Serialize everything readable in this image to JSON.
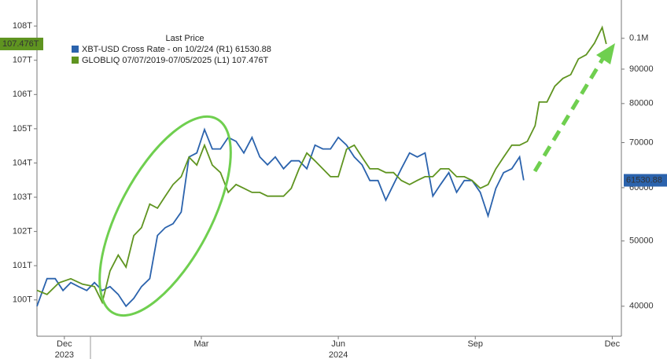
{
  "chart_data": {
    "type": "line",
    "legend_title": "Last Price",
    "xlim": [
      -0.6,
      12.2
    ],
    "xticks": [
      {
        "value": 0,
        "label": "Dec"
      },
      {
        "value": 3,
        "label": "Mar"
      },
      {
        "value": 6,
        "label": "Jun"
      },
      {
        "value": 9,
        "label": "Sep"
      },
      {
        "value": 12,
        "label": "Dec"
      }
    ],
    "x_sublabels": [
      {
        "value": 0,
        "label": "2023"
      },
      {
        "value": 6,
        "label": "2024"
      }
    ],
    "ylim": [
      98.94,
      108.76
    ],
    "yticks": [
      {
        "value": 100,
        "label": "100T"
      },
      {
        "value": 101,
        "label": "101T"
      },
      {
        "value": 102,
        "label": "102T"
      },
      {
        "value": 103,
        "label": "103T"
      },
      {
        "value": 104,
        "label": "104T"
      },
      {
        "value": 105,
        "label": "105T"
      },
      {
        "value": 106,
        "label": "106T"
      },
      {
        "value": 107,
        "label": "107T"
      },
      {
        "value": 108,
        "label": "108T"
      }
    ],
    "y2lim": [
      36100,
      114000
    ],
    "y2log": true,
    "y2ticks": [
      40000,
      50000,
      60000,
      70000,
      80000,
      90000,
      {
        "value": 100000,
        "label": "0.1M"
      }
    ],
    "series": [
      {
        "name": "XBT-USD Cross Rate - on 10/2/24 (R1) 61530.88",
        "color": "#2b63ad",
        "axis": "y2",
        "last_label": "61530.88",
        "x": [
          -0.6,
          -0.38,
          -0.2,
          -0.03,
          0.14,
          0.31,
          0.49,
          0.66,
          0.83,
          1.0,
          1.18,
          1.35,
          1.52,
          1.69,
          1.87,
          2.04,
          2.21,
          2.38,
          2.56,
          2.73,
          2.9,
          3.07,
          3.24,
          3.42,
          3.59,
          3.76,
          3.93,
          4.11,
          4.28,
          4.45,
          4.62,
          4.8,
          4.97,
          5.14,
          5.31,
          5.49,
          5.66,
          5.83,
          6.0,
          6.18,
          6.35,
          6.52,
          6.69,
          6.87,
          7.04,
          7.21,
          7.38,
          7.56,
          7.73,
          7.9,
          8.07,
          8.24,
          8.42,
          8.59,
          8.76,
          8.93,
          9.11,
          9.28,
          9.45,
          9.62,
          9.8,
          9.97,
          10.06
        ],
        "values": [
          40000,
          43960,
          43960,
          42210,
          43370,
          42780,
          42210,
          43370,
          42210,
          42780,
          41650,
          40000,
          41090,
          42780,
          43960,
          50950,
          52330,
          53040,
          55200,
          66640,
          67570,
          73190,
          68490,
          68490,
          71260,
          70310,
          67570,
          71260,
          66640,
          64880,
          66640,
          64010,
          65770,
          65770,
          64010,
          69410,
          68490,
          68490,
          71260,
          69410,
          66640,
          64880,
          61480,
          61480,
          57490,
          60660,
          64010,
          67570,
          66640,
          67570,
          58300,
          60660,
          63160,
          59050,
          61480,
          61480,
          59050,
          54490,
          59850,
          63160,
          64010,
          66640,
          61530.88
        ]
      },
      {
        "name": "GLOBLIQ 07/07/2019-07/05/2025 (L1) 107.476T",
        "color": "#5f9420",
        "axis": "y",
        "last_label": "107.476T",
        "x": [
          -0.6,
          -0.38,
          -0.12,
          0.14,
          0.4,
          0.66,
          0.83,
          1.0,
          1.18,
          1.35,
          1.52,
          1.69,
          1.87,
          2.04,
          2.21,
          2.38,
          2.56,
          2.73,
          2.9,
          3.07,
          3.24,
          3.42,
          3.59,
          3.76,
          3.93,
          4.11,
          4.28,
          4.45,
          4.62,
          4.8,
          4.97,
          5.14,
          5.31,
          5.49,
          5.66,
          5.83,
          6.0,
          6.18,
          6.35,
          6.52,
          6.69,
          6.87,
          7.04,
          7.21,
          7.38,
          7.56,
          7.73,
          7.9,
          8.07,
          8.24,
          8.42,
          8.59,
          8.76,
          8.93,
          9.11,
          9.28,
          9.45,
          9.62,
          9.8,
          9.97,
          10.14,
          10.31,
          10.4,
          10.57,
          10.74,
          10.92,
          11.09,
          11.26,
          11.43,
          11.61,
          11.78,
          11.87
        ],
        "values": [
          100.28,
          100.16,
          100.5,
          100.62,
          100.46,
          100.39,
          99.93,
          100.85,
          101.31,
          100.96,
          101.88,
          102.11,
          102.8,
          102.68,
          103.03,
          103.37,
          103.6,
          104.17,
          103.94,
          104.52,
          103.94,
          103.72,
          103.14,
          103.37,
          103.26,
          103.14,
          103.14,
          103.03,
          103.03,
          103.03,
          103.26,
          103.83,
          104.29,
          104.06,
          103.83,
          103.6,
          103.6,
          104.4,
          104.52,
          104.17,
          103.83,
          103.83,
          103.72,
          103.72,
          103.49,
          103.37,
          103.49,
          103.6,
          103.6,
          103.83,
          103.83,
          103.6,
          103.6,
          103.49,
          103.26,
          103.37,
          103.83,
          104.17,
          104.52,
          104.52,
          104.63,
          105.09,
          105.78,
          105.78,
          106.24,
          106.47,
          106.58,
          107.04,
          107.16,
          107.5,
          107.96,
          107.476
        ]
      }
    ]
  }
}
